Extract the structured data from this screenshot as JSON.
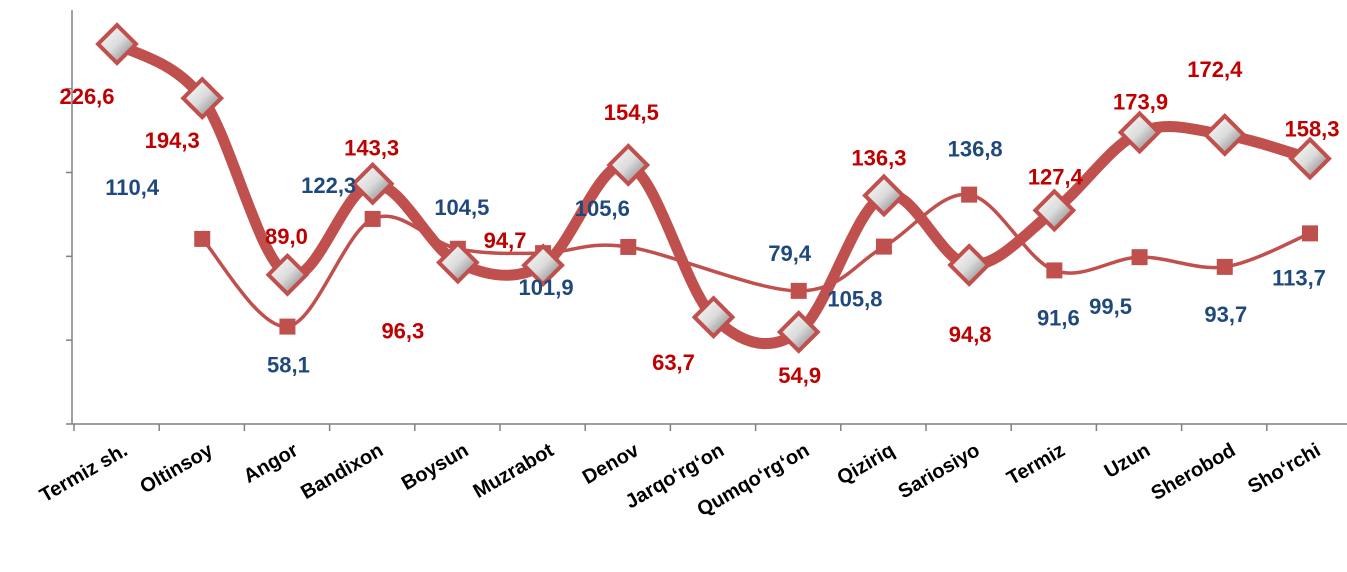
{
  "chart_data": {
    "type": "line",
    "categories": [
      "Termiz sh.",
      "Oltinsoy",
      "Angor",
      "Bandixon",
      "Boysun",
      "Muzrabot",
      "Denov",
      "Jarqo‘rg‘on",
      "Qumqo‘rg‘on",
      "Qiziriq",
      "Sariosiyo",
      "Termiz",
      "Uzun",
      "Sherobod",
      "Sho‘rchi"
    ],
    "series": [
      {
        "values": [
          226.6,
          194.3,
          89.0,
          143.3,
          96.3,
          94.7,
          154.5,
          63.7,
          54.9,
          136.3,
          94.8,
          127.4,
          173.9,
          172.4,
          158.3
        ],
        "labels": [
          "226,6",
          "194,3",
          "89,0",
          "143,3",
          "96,3",
          "94,7",
          "154,5",
          "63,7",
          "54,9",
          "136,3",
          "94,8",
          "127,4",
          "173,9",
          "172,4",
          "158,3"
        ],
        "color": "#c0504d",
        "label_color": "#c00000",
        "marker": "diamond"
      },
      {
        "values": [
          null,
          110.4,
          58.1,
          122.3,
          104.5,
          101.9,
          105.6,
          null,
          79.4,
          105.8,
          136.8,
          91.6,
          99.5,
          93.7,
          113.7
        ],
        "labels": [
          null,
          "110,4",
          "58,1",
          "122,3",
          "104,5",
          "101,9",
          "105,6",
          null,
          "79,4",
          "105,8",
          "136,8",
          "91,6",
          "99,5",
          "93,7",
          "113,7"
        ],
        "color": "#c0504d",
        "label_color": "#1f497d",
        "marker": "square"
      }
    ],
    "ylim": [
      0,
      250
    ],
    "y_ticks": [
      0,
      50,
      100,
      150,
      200
    ],
    "title": "",
    "xlabel": "",
    "ylabel": "",
    "legend": "none",
    "grid": false
  }
}
